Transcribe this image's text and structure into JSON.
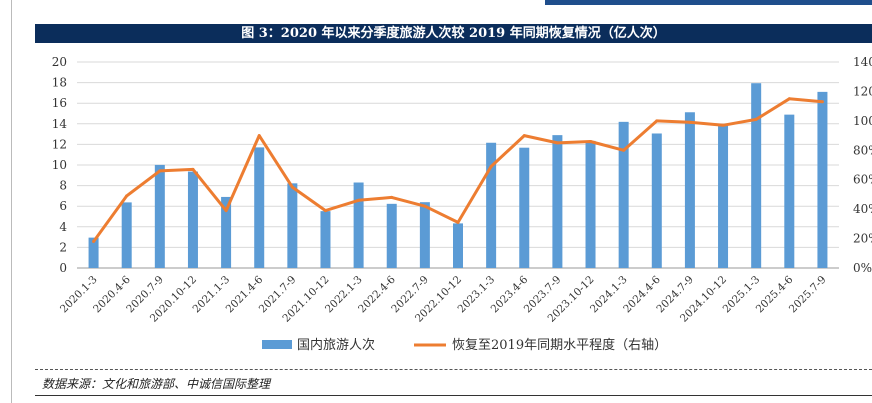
{
  "title": "图 3：2020 年以来分季度旅游人次较 2019 年同期恢复情况（亿人次）",
  "source": "数据来源：文化和旅游部、中诚信国际整理",
  "colors": {
    "bar": "#5b9bd5",
    "line": "#ed7d31",
    "title_bg": "#0b2d5b"
  },
  "chart_data": {
    "type": "bar",
    "title": "图 3：2020 年以来分季度旅游人次较 2019 年同期恢复情况（亿人次）",
    "categories": [
      "2020.1-3",
      "2020.4-6",
      "2020.7-9",
      "2020.10-12",
      "2021.1-3",
      "2021.4-6",
      "2021.7-9",
      "2021.10-12",
      "2022.1-3",
      "2022.4-6",
      "2022.7-9",
      "2022.10-12",
      "2023.1-3",
      "2023.4-6",
      "2023.7-9",
      "2023.10-12",
      "2024.1-3",
      "2024.4-6",
      "2024.7-9",
      "2024.10-12",
      "2025.1-3",
      "2025.4-6",
      "2025.7-9"
    ],
    "series": [
      {
        "name": "国内旅游人次",
        "type": "bar",
        "axis": "left",
        "values": [
          2.95,
          6.37,
          10.01,
          9.36,
          6.9,
          11.71,
          8.22,
          5.52,
          8.3,
          6.23,
          6.39,
          4.33,
          12.16,
          11.68,
          12.9,
          12.34,
          14.19,
          13.06,
          15.12,
          13.83,
          17.94,
          14.89,
          17.1
        ]
      },
      {
        "name": "恢复至2019年同期水平程度（右轴）",
        "type": "line",
        "axis": "right",
        "values": [
          18,
          49,
          66,
          67,
          39,
          90,
          55,
          39,
          46,
          48,
          42,
          31,
          69,
          90,
          85,
          86,
          80,
          100,
          99,
          97,
          101,
          115,
          113
        ]
      }
    ],
    "y_left": {
      "min": 0,
      "max": 20,
      "ticks": [
        "0",
        "2",
        "4",
        "6",
        "8",
        "10",
        "12",
        "14",
        "16",
        "18",
        "20"
      ]
    },
    "y_right": {
      "min": 0,
      "max": 140,
      "ticks": [
        "0%",
        "20%",
        "40%",
        "60%",
        "80%",
        "100%",
        "120%",
        "140%"
      ]
    },
    "grid": true,
    "legend_position": "bottom"
  }
}
